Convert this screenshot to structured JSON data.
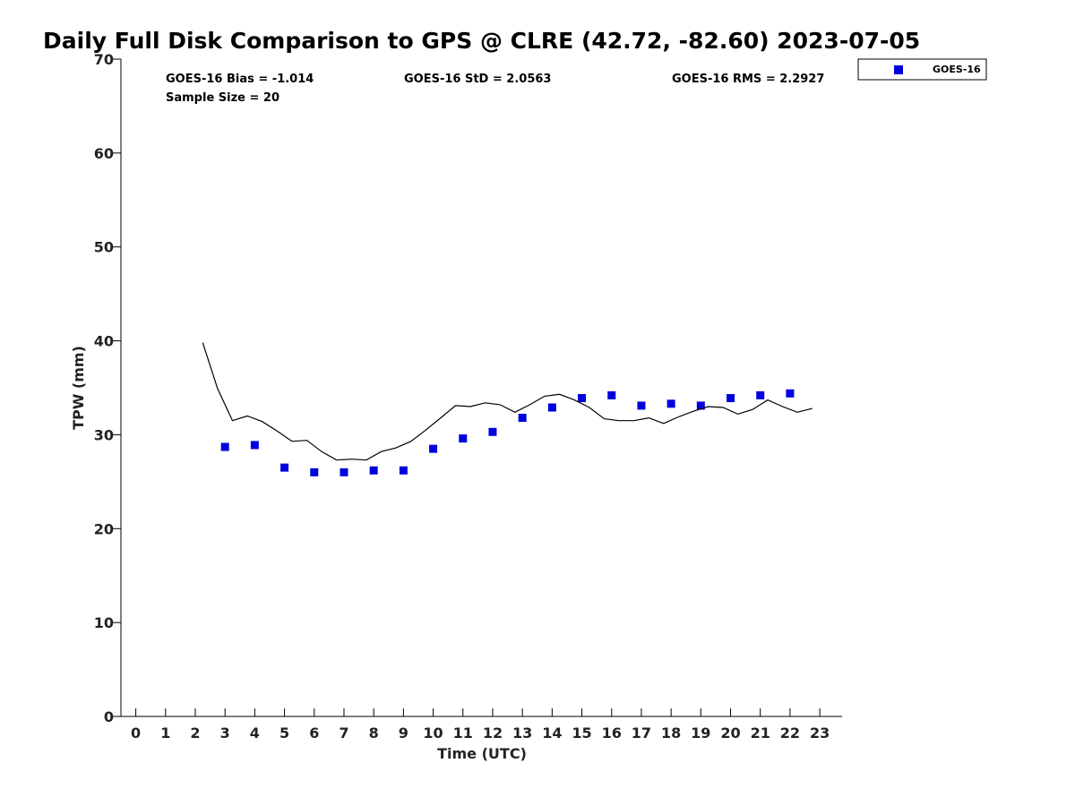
{
  "chart_data": {
    "type": "scatter",
    "title": "Daily Full Disk Comparison to GPS @ CLRE (42.72, -82.60) 2023-07-05",
    "xlabel": "Time (UTC)",
    "ylabel": "TPW (mm)",
    "xlim": [
      -0.5,
      23.75
    ],
    "ylim": [
      0,
      70
    ],
    "x_ticks": [
      "0",
      "1",
      "2",
      "3",
      "4",
      "5",
      "6",
      "7",
      "8",
      "9",
      "10",
      "11",
      "12",
      "13",
      "14",
      "15",
      "16",
      "17",
      "18",
      "19",
      "20",
      "21",
      "22",
      "23"
    ],
    "y_ticks": [
      "0",
      "10",
      "20",
      "30",
      "40",
      "50",
      "60",
      "70"
    ],
    "grid": false,
    "legend_position": "top-right, outside plot",
    "stats": {
      "bias": "GOES-16 Bias = -1.014",
      "std": "GOES-16 StD = 2.0563",
      "rms": "GOES-16 RMS = 2.2927",
      "sample_size": "Sample Size = 20"
    },
    "series": [
      {
        "name": "GOES-16",
        "type": "scatter",
        "marker": "square",
        "color": "#0000dd",
        "x": [
          3,
          4,
          5,
          6,
          7,
          8,
          9,
          10,
          11,
          12,
          13,
          14,
          15,
          16,
          17,
          18,
          19,
          20,
          21,
          22
        ],
        "y": [
          28.7,
          28.9,
          26.5,
          26.0,
          26.0,
          26.2,
          26.2,
          28.5,
          29.6,
          30.3,
          31.8,
          32.9,
          33.9,
          34.2,
          33.1,
          33.3,
          33.1,
          33.9,
          34.2,
          34.4
        ]
      },
      {
        "type": "line",
        "color": "#000000",
        "x": [
          2.25,
          2.75,
          3.25,
          3.75,
          4.25,
          4.75,
          5.25,
          5.75,
          6.25,
          6.75,
          7.25,
          7.75,
          8.25,
          8.75,
          9.25,
          9.75,
          10.25,
          10.75,
          11.25,
          11.75,
          12.25,
          12.75,
          13.25,
          13.75,
          14.25,
          14.75,
          15.25,
          15.75,
          16.25,
          16.75,
          17.25,
          17.75,
          18.25,
          18.75,
          19.25,
          19.75,
          20.25,
          20.75,
          21.25,
          21.75,
          22.25,
          22.75
        ],
        "y": [
          39.8,
          34.9,
          31.5,
          32.0,
          31.4,
          30.4,
          29.3,
          29.4,
          28.2,
          27.3,
          27.4,
          27.3,
          28.2,
          28.6,
          29.3,
          30.5,
          31.8,
          33.1,
          33.0,
          33.4,
          33.2,
          32.4,
          33.2,
          34.1,
          34.3,
          33.7,
          32.9,
          31.7,
          31.5,
          31.5,
          31.8,
          31.2,
          31.9,
          32.5,
          33.0,
          32.9,
          32.2,
          32.7,
          33.7,
          33.0,
          32.4,
          32.8
        ]
      }
    ]
  }
}
